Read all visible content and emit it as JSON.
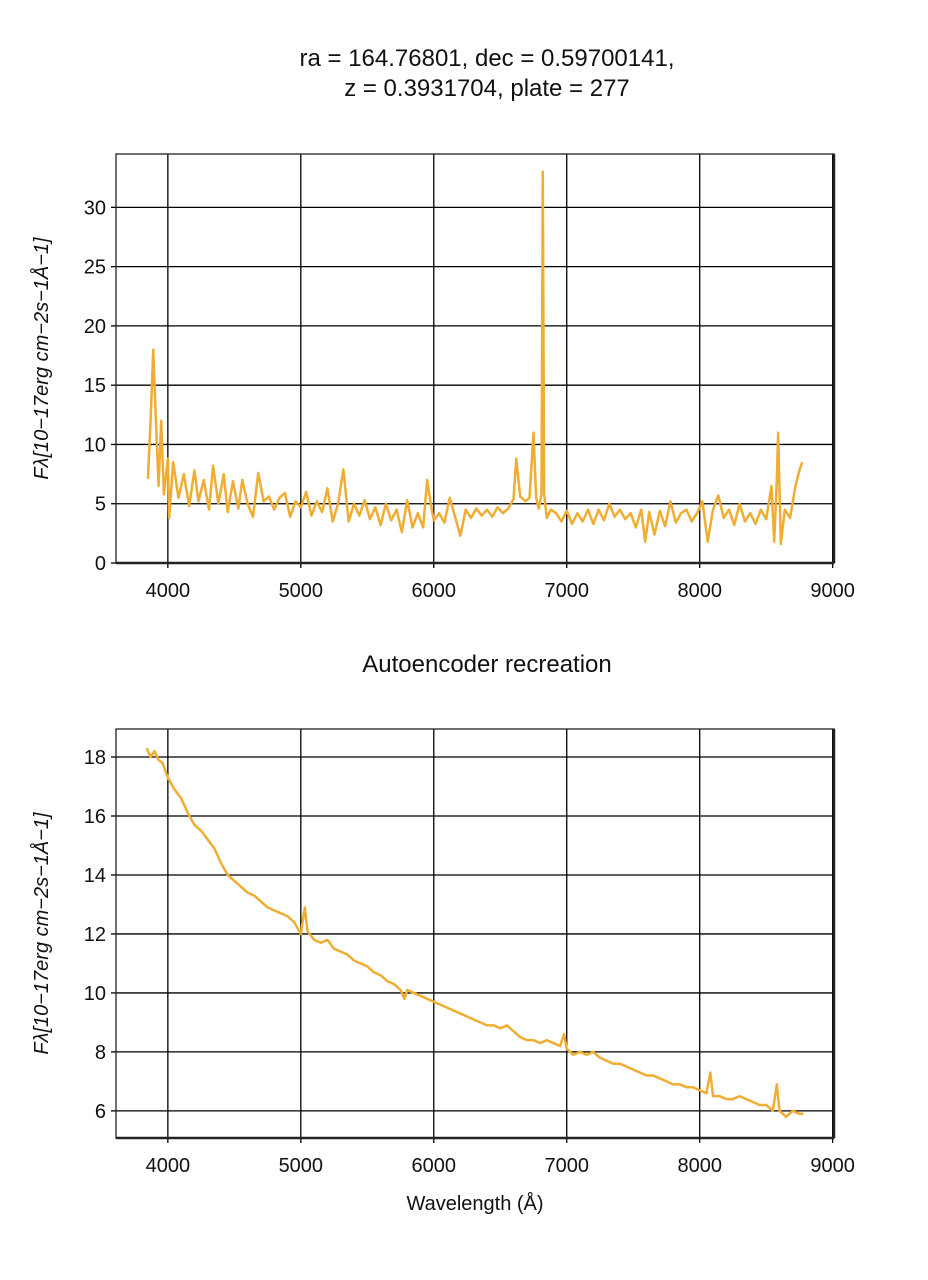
{
  "chart_data": [
    {
      "type": "line",
      "title": [
        "ra = 164.76801, dec = 0.59700141,",
        "z = 0.3931704, plate = 277"
      ],
      "ylabel": "Fλ[10−17erg cm−2s−1Å−1]",
      "xlim": [
        3610,
        9010
      ],
      "xticks": [
        4000,
        5000,
        6000,
        7000,
        8000,
        9000
      ],
      "ylim": [
        0,
        34.5
      ],
      "yticks": [
        0,
        5,
        10,
        15,
        20,
        25,
        30
      ],
      "grid": true,
      "series": [
        {
          "color": "#f0ad33",
          "x": [
            3850,
            3870,
            3890,
            3910,
            3930,
            3950,
            3970,
            4000,
            4010,
            4040,
            4080,
            4120,
            4160,
            4200,
            4230,
            4270,
            4310,
            4340,
            4380,
            4420,
            4450,
            4490,
            4530,
            4560,
            4600,
            4640,
            4680,
            4720,
            4760,
            4800,
            4840,
            4880,
            4920,
            4960,
            5000,
            5040,
            5080,
            5120,
            5160,
            5200,
            5240,
            5280,
            5320,
            5360,
            5400,
            5440,
            5480,
            5520,
            5560,
            5600,
            5640,
            5680,
            5720,
            5760,
            5800,
            5840,
            5880,
            5920,
            5950,
            5980,
            6000,
            6040,
            6080,
            6120,
            6160,
            6200,
            6240,
            6280,
            6320,
            6360,
            6400,
            6440,
            6480,
            6520,
            6560,
            6600,
            6620,
            6650,
            6690,
            6720,
            6750,
            6770,
            6790,
            6810,
            6820,
            6830,
            6850,
            6880,
            6920,
            6960,
            7000,
            7040,
            7080,
            7120,
            7160,
            7200,
            7240,
            7280,
            7320,
            7360,
            7400,
            7440,
            7480,
            7520,
            7560,
            7590,
            7620,
            7660,
            7700,
            7740,
            7780,
            7820,
            7860,
            7900,
            7940,
            7980,
            8020,
            8060,
            8100,
            8140,
            8180,
            8220,
            8260,
            8300,
            8340,
            8380,
            8420,
            8460,
            8500,
            8540,
            8560,
            8580,
            8590,
            8610,
            8640,
            8680,
            8720,
            8750,
            8770
          ],
          "values": [
            7.1,
            12,
            18,
            12,
            6.5,
            12,
            5.8,
            8.8,
            3.8,
            8.5,
            5.5,
            7.5,
            4.8,
            7.8,
            5.2,
            7.0,
            4.5,
            8.2,
            5.0,
            7.5,
            4.3,
            6.9,
            4.6,
            7.0,
            5.0,
            3.9,
            7.6,
            5.2,
            5.6,
            4.5,
            5.5,
            5.9,
            3.9,
            5.2,
            4.7,
            6.0,
            4.0,
            5.2,
            4.3,
            6.3,
            3.5,
            5.0,
            7.9,
            3.5,
            5.0,
            4.0,
            5.3,
            3.7,
            4.7,
            3.2,
            5.0,
            3.6,
            4.5,
            2.6,
            5.3,
            3.0,
            4.2,
            3.0,
            7.0,
            4.8,
            3.6,
            4.2,
            3.4,
            5.5,
            3.9,
            2.3,
            4.5,
            3.8,
            4.6,
            4.0,
            4.5,
            3.9,
            4.7,
            4.2,
            4.6,
            5.4,
            8.8,
            5.6,
            5.2,
            5.5,
            11,
            5.5,
            4.6,
            5.8,
            33,
            5.8,
            3.8,
            4.5,
            4.2,
            3.5,
            4.4,
            3.3,
            4.2,
            3.5,
            4.5,
            3.3,
            4.5,
            3.6,
            5.0,
            3.9,
            4.5,
            3.7,
            4.2,
            3.0,
            4.5,
            1.8,
            4.3,
            2.4,
            4.4,
            3.1,
            5.2,
            3.4,
            4.2,
            4.5,
            3.5,
            4.2,
            5.2,
            1.8,
            4.5,
            5.7,
            3.8,
            4.5,
            3.2,
            5.0,
            3.5,
            4.2,
            3.3,
            4.5,
            3.7,
            6.5,
            1.8,
            7.0,
            11,
            1.6,
            4.5,
            3.8,
            6.5,
            7.8,
            8.5
          ]
        }
      ]
    },
    {
      "type": "line",
      "title": [
        "Autoencoder recreation"
      ],
      "ylabel": "Fλ[10−17erg cm−2s−1Å−1]",
      "xlabel": "Wavelength (Å)",
      "xlim": [
        3610,
        9010
      ],
      "xticks": [
        4000,
        5000,
        6000,
        7000,
        8000,
        9000
      ],
      "ylim": [
        5.08,
        18.95
      ],
      "yticks": [
        6,
        8,
        10,
        12,
        14,
        16,
        18
      ],
      "grid": true,
      "series": [
        {
          "color": "#f0ad33",
          "x": [
            3840,
            3870,
            3900,
            3930,
            3960,
            4000,
            4050,
            4100,
            4150,
            4200,
            4250,
            4300,
            4350,
            4400,
            4450,
            4500,
            4550,
            4600,
            4650,
            4700,
            4750,
            4800,
            4850,
            4900,
            4950,
            5000,
            5030,
            5050,
            5100,
            5150,
            5200,
            5250,
            5300,
            5350,
            5400,
            5450,
            5500,
            5550,
            5600,
            5650,
            5700,
            5750,
            5780,
            5800,
            5850,
            5900,
            5950,
            6000,
            6050,
            6100,
            6150,
            6200,
            6250,
            6300,
            6350,
            6400,
            6450,
            6500,
            6550,
            6600,
            6650,
            6700,
            6750,
            6800,
            6850,
            6900,
            6950,
            6980,
            7000,
            7050,
            7100,
            7150,
            7200,
            7250,
            7300,
            7350,
            7400,
            7450,
            7500,
            7550,
            7600,
            7650,
            7700,
            7750,
            7800,
            7850,
            7900,
            7950,
            8000,
            8050,
            8080,
            8100,
            8150,
            8200,
            8250,
            8300,
            8350,
            8400,
            8450,
            8500,
            8550,
            8580,
            8600,
            8650,
            8700,
            8750,
            8780
          ],
          "values": [
            18.3,
            18.0,
            18.2,
            17.9,
            17.8,
            17.3,
            16.9,
            16.6,
            16.1,
            15.7,
            15.5,
            15.2,
            14.9,
            14.4,
            14.0,
            13.8,
            13.6,
            13.4,
            13.3,
            13.1,
            12.9,
            12.8,
            12.7,
            12.6,
            12.4,
            12.0,
            12.9,
            12.1,
            11.8,
            11.7,
            11.8,
            11.5,
            11.4,
            11.3,
            11.1,
            11.0,
            10.9,
            10.7,
            10.6,
            10.4,
            10.3,
            10.1,
            9.8,
            10.1,
            10.0,
            9.9,
            9.8,
            9.7,
            9.6,
            9.5,
            9.4,
            9.3,
            9.2,
            9.1,
            9.0,
            8.9,
            8.9,
            8.8,
            8.9,
            8.7,
            8.5,
            8.4,
            8.4,
            8.3,
            8.4,
            8.3,
            8.2,
            8.6,
            8.1,
            7.9,
            8.0,
            7.9,
            8.0,
            7.8,
            7.7,
            7.6,
            7.6,
            7.5,
            7.4,
            7.3,
            7.2,
            7.2,
            7.1,
            7.0,
            6.9,
            6.9,
            6.8,
            6.8,
            6.7,
            6.6,
            7.3,
            6.5,
            6.5,
            6.4,
            6.4,
            6.5,
            6.4,
            6.3,
            6.2,
            6.2,
            6.0,
            6.9,
            6.0,
            5.8,
            6.0,
            5.9,
            5.9
          ]
        }
      ]
    }
  ]
}
